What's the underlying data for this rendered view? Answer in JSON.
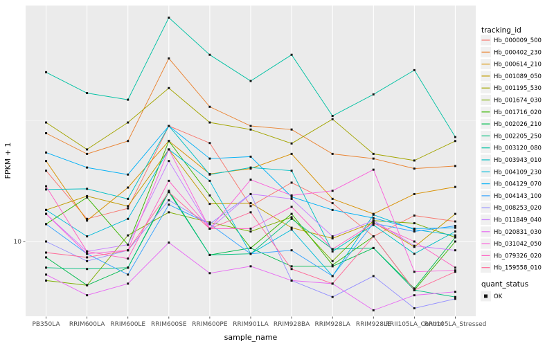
{
  "chart_data": {
    "type": "line",
    "title": "",
    "xlabel": "sample_name",
    "ylabel": "FPKM + 1",
    "x_categories": [
      "PB350LA",
      "RRIM600LA",
      "RRIM600LE",
      "RRIM600SE",
      "RRIM600PE",
      "RRIM901LA",
      "RRIM928BA",
      "RRIM928LA",
      "RRIM928LE",
      "RRII105LA_Control",
      "RRII105LA_Stressed"
    ],
    "y_axis": {
      "scale": "log10",
      "tick_labels": [
        "10"
      ],
      "major_breaks": [
        10
      ],
      "minor_breaks": [
        31.6
      ],
      "range": [
        4.9,
        94
      ],
      "grid": true
    },
    "legend_title": "tracking_id",
    "legend_position": "right",
    "series": [
      {
        "name": "Hb_000009_500",
        "color": "#F8766D",
        "values": [
          19.6,
          12.4,
          13.7,
          30,
          25.5,
          14,
          17.5,
          14.4,
          10.5,
          12.8,
          12.1
        ]
      },
      {
        "name": "Hb_000402_230",
        "color": "#EA8331",
        "values": [
          28,
          23,
          26,
          57,
          36,
          30,
          29,
          23,
          22,
          20,
          20.5
        ]
      },
      {
        "name": "Hb_000614_210",
        "color": "#D89000",
        "values": [
          21.5,
          12.2,
          16.7,
          26,
          19,
          20,
          23,
          15,
          13,
          15.7,
          16.8
        ]
      },
      {
        "name": "Hb_001089_050",
        "color": "#C09B00",
        "values": [
          13.5,
          15.4,
          14,
          24,
          14.3,
          14.4,
          11.4,
          10.3,
          12,
          9.5,
          13
        ]
      },
      {
        "name": "Hb_001195_530",
        "color": "#A3A500",
        "values": [
          31,
          24,
          31,
          43,
          31,
          29,
          25.4,
          32,
          23,
          21.6,
          26
        ]
      },
      {
        "name": "Hb_001674_030",
        "color": "#7CAE00",
        "values": [
          6.9,
          6.6,
          10.6,
          13.2,
          12,
          11,
          12.6,
          8.3,
          12.2,
          11.9,
          10.4
        ]
      },
      {
        "name": "Hb_001716_020",
        "color": "#39B600",
        "values": [
          11.8,
          15.2,
          9.7,
          26,
          15.5,
          9.4,
          13,
          8,
          10.5,
          6.3,
          10
        ]
      },
      {
        "name": "Hb_002026_210",
        "color": "#00BB4E",
        "values": [
          8.6,
          6.6,
          7.8,
          16.2,
          8.8,
          9.4,
          7.9,
          7.9,
          9.4,
          6.4,
          10.4
        ]
      },
      {
        "name": "Hb_002205_250",
        "color": "#00BF7D",
        "values": [
          7.8,
          7.7,
          7.8,
          16,
          8.8,
          8.9,
          12.4,
          9.3,
          9.4,
          6.3,
          5.9
        ]
      },
      {
        "name": "Hb_003120_080",
        "color": "#00C1A3",
        "values": [
          50,
          41,
          38.5,
          84,
          59,
          46,
          59,
          33,
          40.5,
          51,
          27
        ]
      },
      {
        "name": "Hb_003943_010",
        "color": "#00BFC4",
        "values": [
          16.4,
          16.5,
          15,
          30,
          18.9,
          20.2,
          19.6,
          9.1,
          11.7,
          8.9,
          11.0
        ]
      },
      {
        "name": "Hb_004109_230",
        "color": "#00BBDA",
        "values": [
          13.5,
          10.5,
          12.4,
          24,
          17.8,
          8.9,
          11.2,
          7.2,
          12.9,
          11.2,
          10.6
        ]
      },
      {
        "name": "Hb_004129_070",
        "color": "#00B0F6",
        "values": [
          23.3,
          20.2,
          18.9,
          30,
          22,
          22.4,
          15.3,
          13.5,
          12.5,
          11.3,
          11.4
        ]
      },
      {
        "name": "Hb_004143_100",
        "color": "#35A2FF",
        "values": [
          11.8,
          8.9,
          7.3,
          14.2,
          11.8,
          8.9,
          9.2,
          7.2,
          11.9,
          11.0,
          11.6
        ]
      },
      {
        "name": "Hb_008253_020",
        "color": "#9590FF",
        "values": [
          10,
          8.3,
          9.2,
          14.8,
          11.8,
          15.7,
          6.9,
          5.9,
          7.2,
          5.3,
          5.8
        ]
      },
      {
        "name": "Hb_011849_040",
        "color": "#C77CFF",
        "values": [
          13,
          9.1,
          9.7,
          21.5,
          11.3,
          15.7,
          15,
          10.5,
          12.2,
          9.6,
          9.2
        ]
      },
      {
        "name": "Hb_020831_030",
        "color": "#E76BF3",
        "values": [
          7.3,
          6.0,
          6.7,
          9.9,
          7.4,
          7.9,
          6.9,
          6.7,
          5.2,
          6.0,
          6.2
        ]
      },
      {
        "name": "Hb_031042_050",
        "color": "#FA62DB",
        "values": [
          13,
          8.9,
          9.2,
          24,
          11.3,
          18,
          15.5,
          16.2,
          19.8,
          7.5,
          7.6
        ]
      },
      {
        "name": "Hb_079326_020",
        "color": "#FF61C3",
        "values": [
          16.9,
          9.1,
          8.5,
          17.8,
          11.3,
          11.3,
          13.9,
          9.3,
          11.9,
          10,
          7.8
        ]
      },
      {
        "name": "Hb_159558_010",
        "color": "#FF6A98",
        "values": [
          9,
          8.6,
          9.2,
          16,
          11.3,
          13.2,
          7.7,
          6.7,
          10.5,
          6.3,
          7.5
        ]
      }
    ],
    "secondary_legend": {
      "title": "quant_status",
      "items": [
        {
          "label": "OK",
          "marker": "filled-black-square"
        }
      ]
    },
    "colors": {
      "panel_bg": "#EBEBEB",
      "grid": "#FFFFFF",
      "marker": "#151515",
      "axis_text": "#4D4D4D",
      "tick": "#333333",
      "legend_key_bg": "#F0F0F0"
    }
  }
}
